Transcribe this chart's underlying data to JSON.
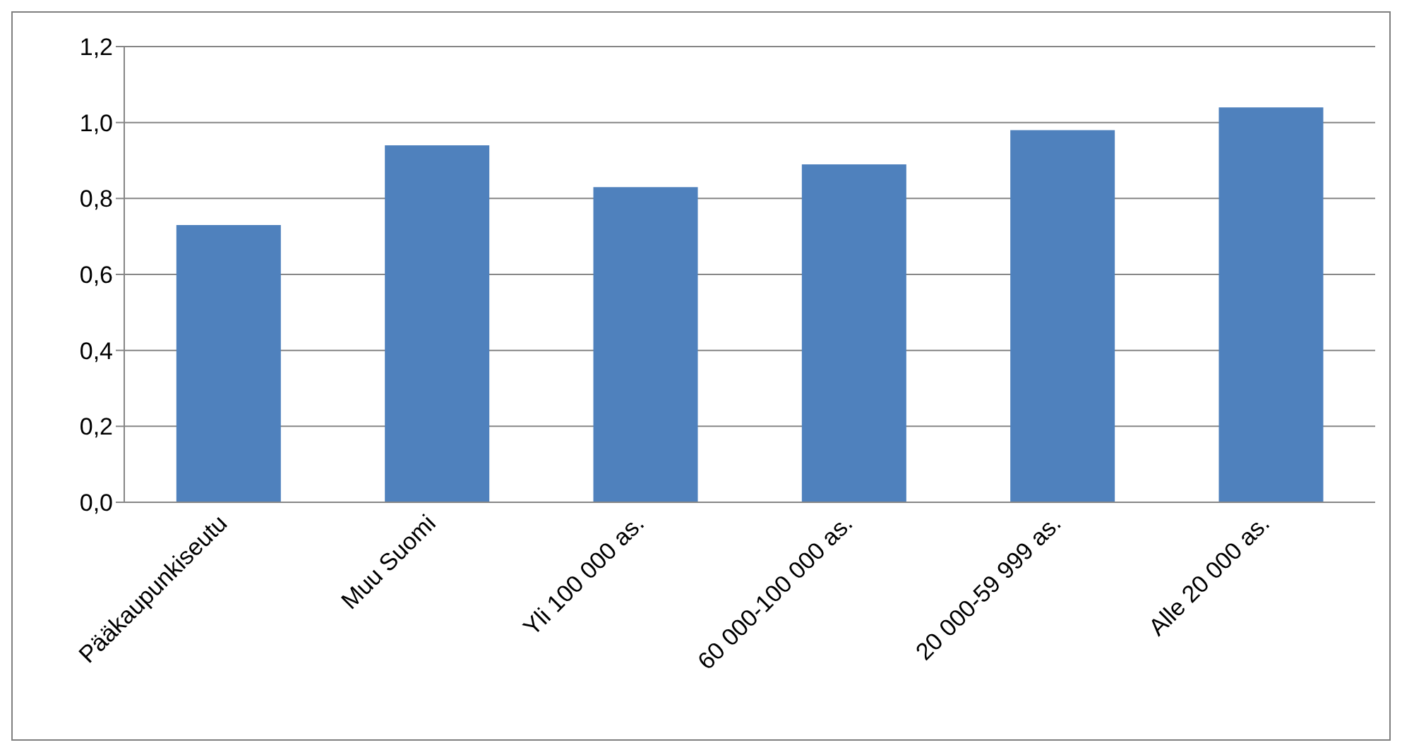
{
  "chart_data": {
    "type": "bar",
    "categories": [
      "Pääkaupunkiseutu",
      "Muu Suomi",
      "Yli 100 000 as.",
      "60 000-100 000 as.",
      "20 000-59 999 as.",
      "Alle 20 000 as."
    ],
    "values": [
      0.73,
      0.94,
      0.83,
      0.89,
      0.98,
      1.04
    ],
    "color": "#4f81bd",
    "ylim": [
      0,
      1.2
    ],
    "yticks": [
      {
        "value": 0,
        "label": "0,0"
      },
      {
        "value": 0.2,
        "label": "0,2"
      },
      {
        "value": 0.4,
        "label": "0,4"
      },
      {
        "value": 0.6,
        "label": "0,6"
      },
      {
        "value": 0.8,
        "label": "0,8"
      },
      {
        "value": 1,
        "label": "1,0"
      },
      {
        "value": 1.2,
        "label": "1,2"
      }
    ],
    "grid": "y",
    "legend": false
  }
}
